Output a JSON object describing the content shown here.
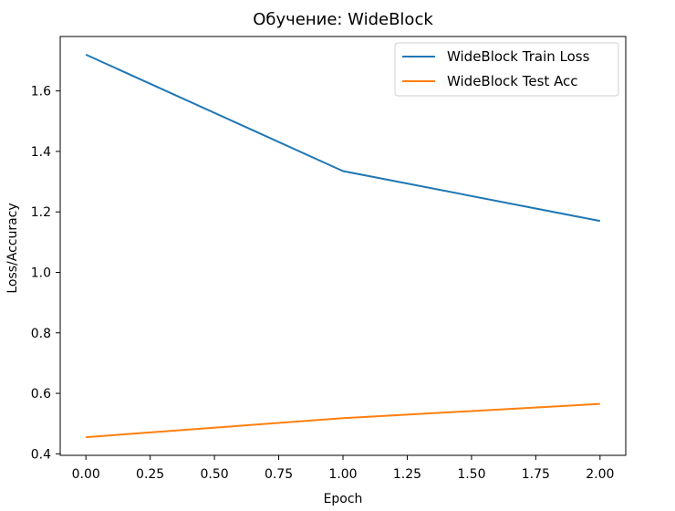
{
  "chart_data": {
    "type": "line",
    "title": "Обучение: WideBlock",
    "xlabel": "Epoch",
    "ylabel": "Loss/Accuracy",
    "x": [
      0,
      1,
      2
    ],
    "xlim": [
      -0.1,
      2.1
    ],
    "ylim": [
      0.395,
      1.78
    ],
    "xticks": [
      0.0,
      0.25,
      0.5,
      0.75,
      1.0,
      1.25,
      1.5,
      1.75,
      2.0
    ],
    "xtick_labels": [
      "0.00",
      "0.25",
      "0.50",
      "0.75",
      "1.00",
      "1.25",
      "1.50",
      "1.75",
      "2.00"
    ],
    "yticks": [
      0.4,
      0.6,
      0.8,
      1.0,
      1.2,
      1.4,
      1.6
    ],
    "ytick_labels": [
      "0.4",
      "0.6",
      "0.8",
      "1.0",
      "1.2",
      "1.4",
      "1.6"
    ],
    "grid": false,
    "legend_position": "top-right",
    "series": [
      {
        "name": "WideBlock Train Loss",
        "values": [
          1.72,
          1.335,
          1.17
        ],
        "color": "#1f77b4"
      },
      {
        "name": "WideBlock Test Acc",
        "values": [
          0.455,
          0.518,
          0.565
        ],
        "color": "#ff7f0e"
      }
    ]
  }
}
